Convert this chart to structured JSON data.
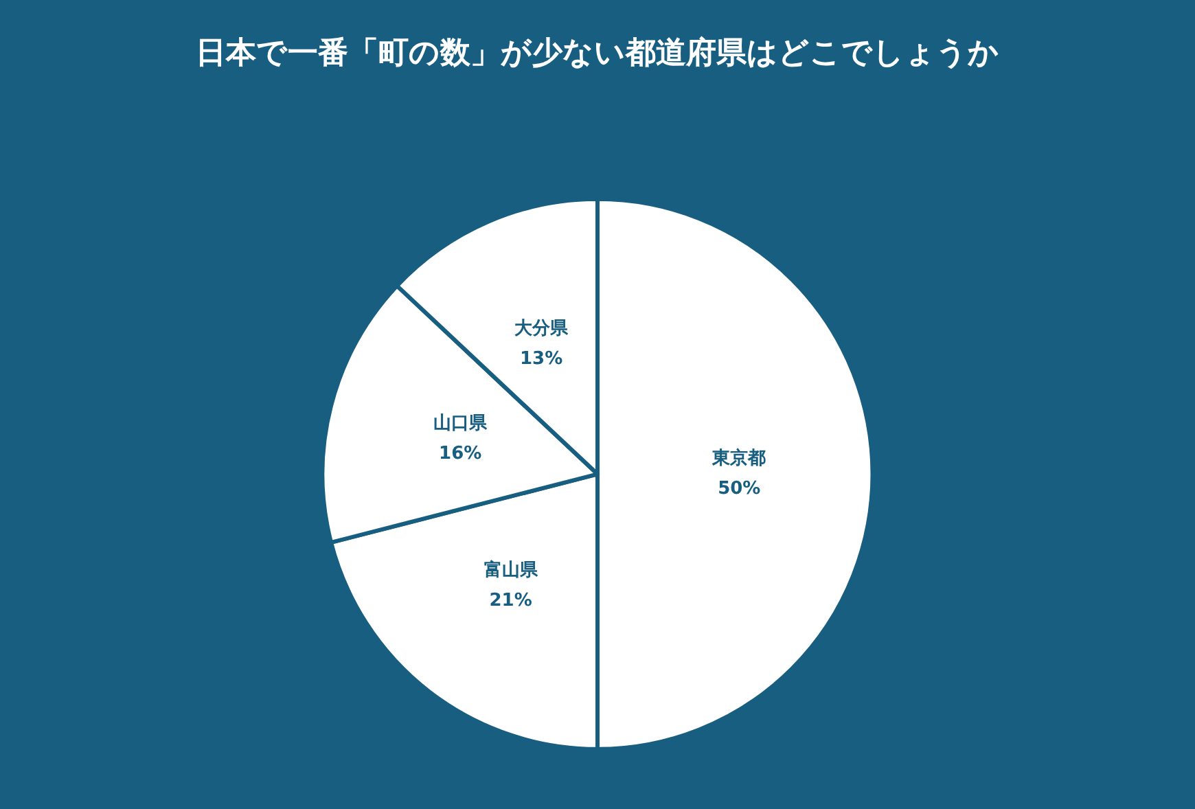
{
  "chart_data": {
    "type": "pie",
    "title": "日本で一番「町の数」が少ない都道府県はどこでしょうか",
    "categories": [
      "東京都",
      "富山県",
      "山口県",
      "大分県"
    ],
    "values": [
      50,
      21,
      16,
      13
    ],
    "value_labels": [
      "50%",
      "21%",
      "16%",
      "13%"
    ],
    "colors": [
      "#ffffff",
      "#ffffff",
      "#ffffff",
      "#ffffff"
    ],
    "legend": false
  }
}
